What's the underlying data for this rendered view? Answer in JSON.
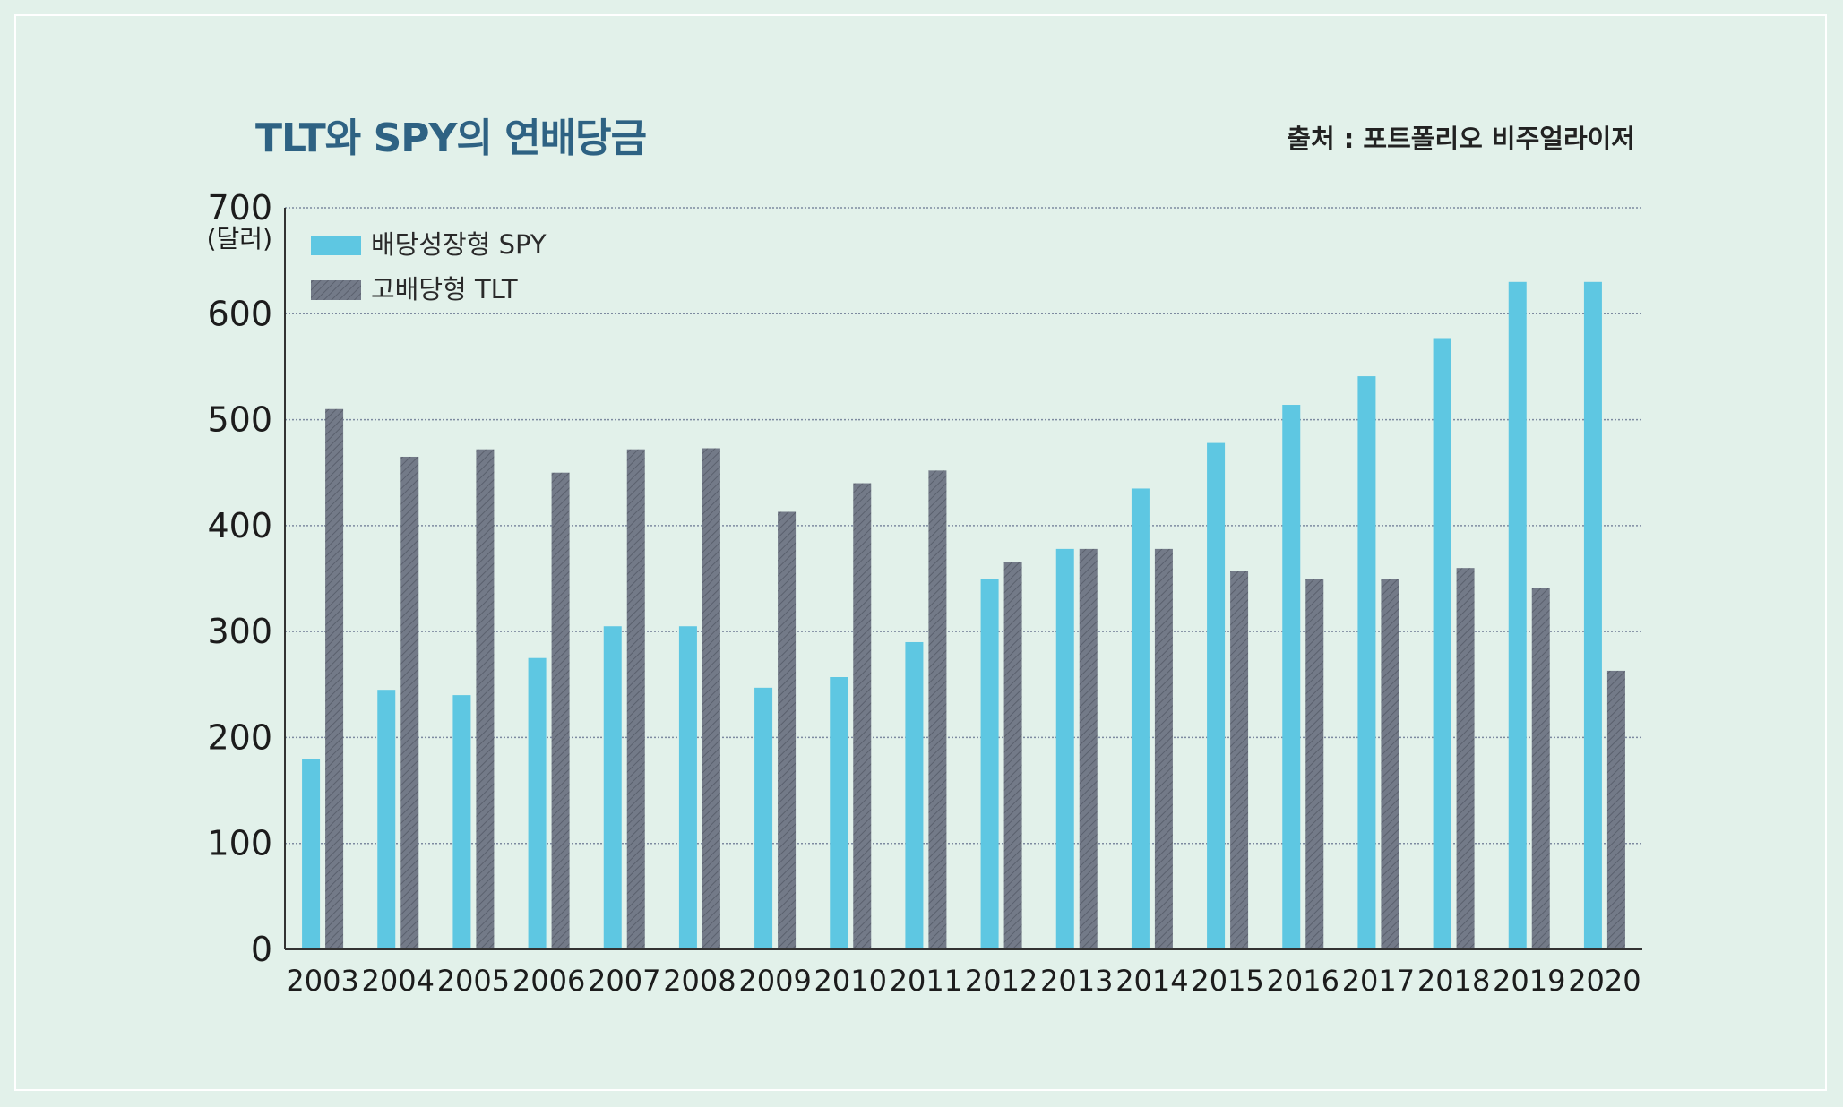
{
  "title": "TLT와 SPY의 연배당금",
  "source": "출처 : 포트폴리오 비주얼라이저",
  "colors": {
    "spy": "#5ec7e2",
    "tlt": "#737a88",
    "grid": "#7d8aa0",
    "background": "#e2f1ea"
  },
  "chart_data": {
    "type": "bar",
    "title": "TLT와 SPY의 연배당금",
    "ylabel": "(달러)",
    "xlabel": "",
    "ylim": [
      0,
      700
    ],
    "yticks": [
      0,
      100,
      200,
      300,
      400,
      500,
      600,
      700
    ],
    "grid": true,
    "legend_position": "top-left",
    "categories": [
      "2003",
      "2004",
      "2005",
      "2006",
      "2007",
      "2008",
      "2009",
      "2010",
      "2011",
      "2012",
      "2013",
      "2014",
      "2015",
      "2016",
      "2017",
      "2018",
      "2019",
      "2020"
    ],
    "series": [
      {
        "name": "배당성장형 SPY",
        "values": [
          180,
          245,
          240,
          275,
          305,
          305,
          247,
          257,
          290,
          350,
          378,
          435,
          478,
          514,
          541,
          577,
          630,
          630
        ]
      },
      {
        "name": "고배당형 TLT",
        "values": [
          510,
          465,
          472,
          450,
          472,
          473,
          413,
          440,
          452,
          366,
          378,
          378,
          357,
          350,
          350,
          360,
          341,
          263
        ]
      }
    ]
  }
}
